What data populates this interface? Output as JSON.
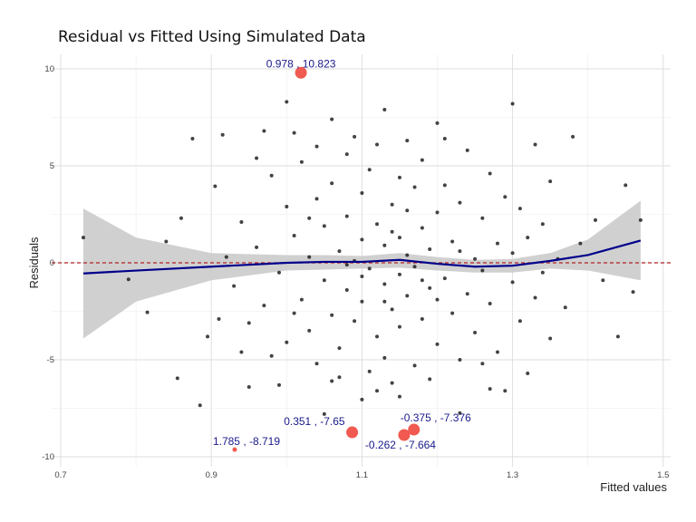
{
  "chart_data": {
    "type": "scatter",
    "title": "Residual vs Fitted Using Simulated Data",
    "xlabel": "Fitted values",
    "ylabel": "Residuals",
    "xlim": [
      0.7,
      1.5
    ],
    "ylim": [
      -10.5,
      10.8
    ],
    "xticks": [
      "0.7",
      "0.9",
      "1.1",
      "1.3",
      "1.5"
    ],
    "yticks": [
      "-10",
      "-5",
      "0",
      "5",
      "10"
    ],
    "grid": true,
    "reference_line": {
      "y": 0,
      "color": "#b22222",
      "style": "dashed"
    },
    "point_color": "#222222",
    "points": [
      [
        0.73,
        1.3
      ],
      [
        0.79,
        -0.85
      ],
      [
        0.815,
        -2.55
      ],
      [
        0.855,
        -5.95
      ],
      [
        0.875,
        6.4
      ],
      [
        0.885,
        -7.35
      ],
      [
        0.895,
        -3.8
      ],
      [
        0.905,
        3.95
      ],
      [
        0.915,
        6.6
      ],
      [
        0.84,
        1.1
      ],
      [
        0.86,
        2.3
      ],
      [
        1.0,
        8.3
      ],
      [
        1.23,
        -7.75
      ],
      [
        1.3,
        8.2
      ],
      [
        1.38,
        6.5
      ],
      [
        1.44,
        -3.8
      ],
      [
        1.45,
        4.0
      ],
      [
        1.47,
        2.2
      ],
      [
        1.46,
        -1.5
      ],
      [
        1.41,
        2.2
      ],
      [
        1.33,
        6.1
      ],
      [
        1.35,
        -3.9
      ],
      [
        1.34,
        2.0
      ],
      [
        1.42,
        -0.9
      ],
      [
        1.39,
        1.0
      ],
      [
        1.13,
        7.9
      ],
      [
        1.2,
        7.2
      ],
      [
        1.06,
        7.4
      ],
      [
        1.01,
        6.7
      ],
      [
        0.97,
        6.8
      ],
      [
        0.95,
        -6.4
      ],
      [
        0.99,
        -6.3
      ],
      [
        1.05,
        -7.8
      ],
      [
        1.1,
        -7.05
      ],
      [
        1.15,
        -6.9
      ],
      [
        1.27,
        -6.5
      ],
      [
        1.29,
        -6.6
      ],
      [
        0.93,
        -1.2
      ],
      [
        0.94,
        2.1
      ],
      [
        0.95,
        -3.1
      ],
      [
        0.96,
        0.8
      ],
      [
        0.97,
        -2.2
      ],
      [
        0.98,
        4.5
      ],
      [
        0.99,
        -0.5
      ],
      [
        1.0,
        2.9
      ],
      [
        1.0,
        -4.1
      ],
      [
        1.01,
        1.4
      ],
      [
        1.02,
        -1.9
      ],
      [
        1.02,
        5.2
      ],
      [
        1.03,
        -3.5
      ],
      [
        1.03,
        0.3
      ],
      [
        1.04,
        3.3
      ],
      [
        1.04,
        -5.2
      ],
      [
        1.05,
        1.9
      ],
      [
        1.05,
        -0.9
      ],
      [
        1.06,
        4.1
      ],
      [
        1.06,
        -2.7
      ],
      [
        1.07,
        0.6
      ],
      [
        1.07,
        -4.4
      ],
      [
        1.08,
        2.4
      ],
      [
        1.08,
        -1.4
      ],
      [
        1.08,
        5.6
      ],
      [
        1.09,
        -3.0
      ],
      [
        1.09,
        0.1
      ],
      [
        1.1,
        3.6
      ],
      [
        1.1,
        -2.0
      ],
      [
        1.1,
        1.2
      ],
      [
        1.11,
        -5.6
      ],
      [
        1.11,
        4.8
      ],
      [
        1.11,
        -0.3
      ],
      [
        1.12,
        2.0
      ],
      [
        1.12,
        -3.8
      ],
      [
        1.12,
        6.1
      ],
      [
        1.13,
        -1.1
      ],
      [
        1.13,
        0.9
      ],
      [
        1.13,
        -4.9
      ],
      [
        1.14,
        3.0
      ],
      [
        1.14,
        -2.4
      ],
      [
        1.14,
        1.6
      ],
      [
        1.15,
        -0.6
      ],
      [
        1.15,
        4.4
      ],
      [
        1.15,
        -3.3
      ],
      [
        1.16,
        2.7
      ],
      [
        1.16,
        -1.7
      ],
      [
        1.16,
        0.4
      ],
      [
        1.17,
        -5.3
      ],
      [
        1.17,
        3.9
      ],
      [
        1.17,
        -0.2
      ],
      [
        1.18,
        1.8
      ],
      [
        1.18,
        -2.9
      ],
      [
        1.18,
        5.3
      ],
      [
        1.19,
        -1.3
      ],
      [
        1.19,
        0.7
      ],
      [
        1.2,
        -4.2
      ],
      [
        1.2,
        2.6
      ],
      [
        1.21,
        -0.8
      ],
      [
        1.21,
        4.0
      ],
      [
        1.22,
        -2.6
      ],
      [
        1.22,
        1.1
      ],
      [
        1.23,
        -5.0
      ],
      [
        1.23,
        3.1
      ],
      [
        1.24,
        -1.6
      ],
      [
        1.24,
        5.8
      ],
      [
        1.25,
        0.2
      ],
      [
        1.25,
        -3.6
      ],
      [
        1.26,
        2.3
      ],
      [
        1.26,
        -0.4
      ],
      [
        1.27,
        4.6
      ],
      [
        1.27,
        -2.1
      ],
      [
        1.28,
        1.0
      ],
      [
        1.28,
        -4.6
      ],
      [
        1.29,
        3.4
      ],
      [
        1.3,
        -1.0
      ],
      [
        1.3,
        0.5
      ],
      [
        1.31,
        -3.0
      ],
      [
        1.31,
        2.8
      ],
      [
        1.32,
        -5.7
      ],
      [
        1.32,
        1.3
      ],
      [
        1.33,
        -1.8
      ],
      [
        1.36,
        0.2
      ],
      [
        1.37,
        -2.3
      ],
      [
        1.06,
        -6.1
      ],
      [
        1.09,
        6.5
      ],
      [
        1.12,
        -6.6
      ],
      [
        1.16,
        6.3
      ],
      [
        1.19,
        -6.0
      ],
      [
        0.96,
        5.4
      ],
      [
        0.98,
        -4.8
      ],
      [
        1.01,
        -2.6
      ],
      [
        1.04,
        6.0
      ],
      [
        1.07,
        -5.9
      ],
      [
        1.14,
        -6.2
      ],
      [
        1.21,
        6.4
      ],
      [
        1.26,
        -5.2
      ],
      [
        1.03,
        2.3
      ],
      [
        1.08,
        -0.1
      ],
      [
        1.13,
        -2.0
      ],
      [
        1.18,
        -0.9
      ],
      [
        1.23,
        0.6
      ],
      [
        1.1,
        -0.7
      ],
      [
        1.15,
        1.3
      ],
      [
        1.2,
        -1.9
      ],
      [
        0.92,
        0.3
      ],
      [
        0.91,
        -2.9
      ],
      [
        0.94,
        -4.6
      ],
      [
        1.34,
        -0.5
      ],
      [
        1.35,
        4.2
      ]
    ],
    "smooth": {
      "color": "#00008b",
      "x": [
        0.73,
        0.8,
        0.9,
        1.0,
        1.05,
        1.1,
        1.15,
        1.2,
        1.25,
        1.3,
        1.35,
        1.4,
        1.47
      ],
      "y": [
        -0.55,
        -0.4,
        -0.2,
        0.0,
        0.05,
        0.05,
        0.15,
        -0.05,
        -0.2,
        -0.15,
        0.1,
        0.4,
        1.15
      ],
      "ci_lower": [
        -3.9,
        -2.0,
        -0.9,
        -0.4,
        -0.35,
        -0.3,
        -0.25,
        -0.4,
        -0.5,
        -0.5,
        -0.3,
        -0.4,
        -0.9
      ],
      "ci_upper": [
        2.8,
        1.3,
        0.5,
        0.4,
        0.4,
        0.35,
        0.5,
        0.3,
        0.15,
        0.2,
        0.5,
        1.2,
        3.2
      ]
    },
    "highlighted": {
      "color": "#f05a50",
      "points": [
        {
          "x": 1.019,
          "y": 9.8,
          "label": "0.978 , 10.823",
          "size": "large"
        },
        {
          "x": 1.087,
          "y": -8.74,
          "label": "0.351 , -7.65",
          "size": "large"
        },
        {
          "x": 1.169,
          "y": -8.6,
          "label": "-0.375 , -7.376",
          "size": "large"
        },
        {
          "x": 1.156,
          "y": -8.88,
          "label": "-0.262 , -7.664",
          "size": "large"
        },
        {
          "x": 0.931,
          "y": -9.63,
          "label": "1.785 , -8.719",
          "size": "small"
        }
      ]
    }
  }
}
